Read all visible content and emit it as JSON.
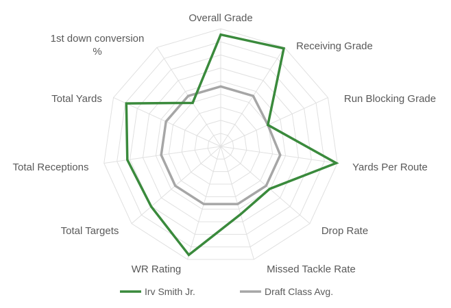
{
  "chart_data": {
    "type": "radar",
    "categories": [
      "Overall Grade",
      "Receiving Grade",
      "Run Blocking Grade",
      "Yards Per Route",
      "Drop Rate",
      "Missed Tackle Rate",
      "WR Rating",
      "Total Targets",
      "Total Receptions",
      "Total Yards",
      "1st down conversion %"
    ],
    "series": [
      {
        "name": "Irv Smith Jr.",
        "color": "#3a8a3c",
        "values": [
          0.95,
          0.99,
          0.44,
          0.99,
          0.55,
          0.6,
          0.96,
          0.78,
          0.8,
          0.88,
          0.44
        ]
      },
      {
        "name": "Draft Class Avg.",
        "color": "#a6a6a6",
        "values": [
          0.51,
          0.51,
          0.44,
          0.51,
          0.51,
          0.51,
          0.51,
          0.51,
          0.51,
          0.51,
          0.51
        ]
      }
    ],
    "rlim": [
      0,
      1
    ],
    "rings": 9,
    "legend": "bottom",
    "grid": true
  }
}
